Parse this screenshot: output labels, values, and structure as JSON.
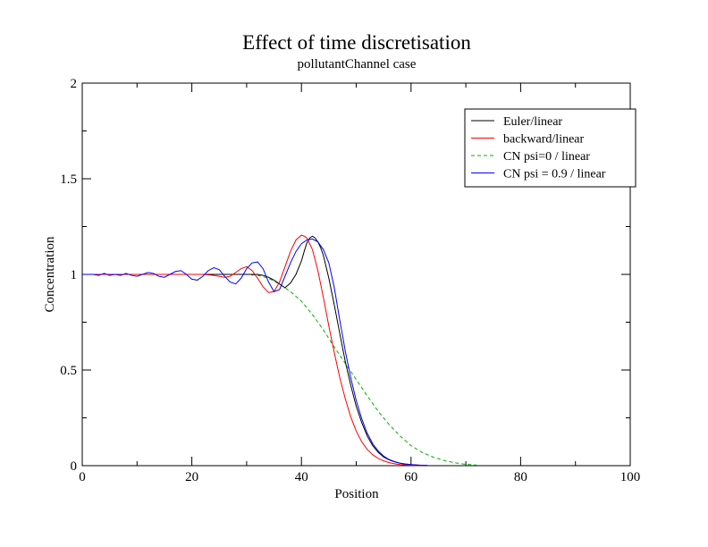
{
  "chart_data": {
    "type": "line",
    "title": "Effect of time discretisation",
    "subtitle": "pollutantChannel case",
    "xlabel": "Position",
    "ylabel": "Concentration",
    "xlim": [
      0,
      100
    ],
    "ylim": [
      0,
      2
    ],
    "x_ticks": [
      {
        "value": 0,
        "label": "0"
      },
      {
        "value": 20,
        "label": "20"
      },
      {
        "value": 40,
        "label": "40"
      },
      {
        "value": 60,
        "label": "60"
      },
      {
        "value": 80,
        "label": "80"
      },
      {
        "value": 100,
        "label": "100"
      }
    ],
    "y_ticks": [
      {
        "value": 0,
        "label": "0"
      },
      {
        "value": 0.5,
        "label": "0.5"
      },
      {
        "value": 1,
        "label": "1"
      },
      {
        "value": 1.5,
        "label": "1.5"
      },
      {
        "value": 2,
        "label": "2"
      }
    ],
    "grid": false,
    "legend_position": "top-right",
    "series": [
      {
        "name": "Euler/linear",
        "color": "#000000",
        "dash": "solid",
        "x": [
          0,
          2,
          4,
          6,
          8,
          10,
          12,
          14,
          16,
          18,
          20,
          22,
          24,
          26,
          28,
          30,
          32,
          33,
          34,
          35,
          36,
          37,
          38,
          39,
          40,
          40.5,
          41,
          41.5,
          42,
          42.5,
          43,
          43.5,
          44,
          45,
          46,
          47,
          48,
          49,
          50,
          51,
          52,
          53,
          54,
          55,
          56,
          57,
          58,
          59,
          60,
          61,
          62,
          63
        ],
        "y": [
          1,
          1,
          1,
          1,
          1,
          1,
          1,
          1,
          1,
          1,
          1,
          1,
          1,
          1,
          1,
          1,
          1,
          0.995,
          0.985,
          0.97,
          0.95,
          0.93,
          0.955,
          1.0,
          1.07,
          1.12,
          1.165,
          1.19,
          1.2,
          1.19,
          1.17,
          1.14,
          1.1,
          0.98,
          0.84,
          0.69,
          0.545,
          0.42,
          0.31,
          0.225,
          0.155,
          0.105,
          0.07,
          0.045,
          0.03,
          0.02,
          0.013,
          0.009,
          0.006,
          0.004,
          0.002,
          0.001
        ]
      },
      {
        "name": "backward/linear",
        "color": "#ff0000",
        "dash": "solid",
        "x": [
          0,
          2,
          4,
          6,
          8,
          10,
          12,
          14,
          16,
          18,
          20,
          22,
          24,
          25,
          26,
          27,
          28,
          29,
          30,
          31,
          32,
          33,
          34,
          35,
          36,
          37,
          38,
          39,
          40,
          40.5,
          41,
          42,
          43,
          44,
          45,
          46,
          47,
          48,
          49,
          50,
          51,
          52,
          53,
          54,
          55,
          56,
          57,
          58,
          59,
          60,
          61,
          62
        ],
        "y": [
          1,
          1,
          1,
          1,
          1,
          1,
          1,
          1,
          1,
          1,
          1,
          1,
          0.995,
          0.99,
          0.985,
          0.99,
          1.01,
          1.03,
          1.04,
          1.02,
          0.98,
          0.935,
          0.905,
          0.91,
          0.96,
          1.04,
          1.12,
          1.18,
          1.205,
          1.2,
          1.19,
          1.13,
          1.02,
          0.88,
          0.73,
          0.59,
          0.46,
          0.35,
          0.255,
          0.18,
          0.125,
          0.085,
          0.057,
          0.038,
          0.025,
          0.016,
          0.01,
          0.006,
          0.004,
          0.002,
          0.001,
          0.0005
        ]
      },
      {
        "name": "CN psi=0 / linear",
        "color": "#00b000",
        "dash": "dashed",
        "x": [
          0,
          5,
          10,
          15,
          20,
          25,
          30,
          32,
          34,
          36,
          38,
          40,
          42,
          44,
          46,
          48,
          50,
          52,
          54,
          56,
          58,
          60,
          62,
          64,
          66,
          68,
          70,
          72
        ],
        "y": [
          1,
          1,
          1,
          1,
          1,
          1,
          1,
          0.995,
          0.98,
          0.95,
          0.91,
          0.86,
          0.79,
          0.71,
          0.62,
          0.535,
          0.45,
          0.365,
          0.285,
          0.215,
          0.155,
          0.105,
          0.07,
          0.045,
          0.027,
          0.015,
          0.007,
          0.003
        ]
      },
      {
        "name": "CN psi = 0.9 / linear",
        "color": "#0000ff",
        "dash": "solid",
        "x": [
          0,
          1,
          2,
          3,
          4,
          5,
          6,
          7,
          8,
          9,
          10,
          11,
          12,
          13,
          14,
          15,
          16,
          17,
          18,
          19,
          20,
          21,
          22,
          23,
          24,
          25,
          26,
          27,
          28,
          29,
          30,
          31,
          32,
          33,
          34,
          35,
          36,
          37,
          38,
          39,
          40,
          41,
          42,
          43,
          44,
          45,
          46,
          47,
          48,
          49,
          50,
          51,
          52,
          53,
          54,
          55,
          56,
          57,
          58,
          59,
          60,
          61,
          62,
          63
        ],
        "y": [
          1,
          1,
          1,
          0.995,
          1.005,
          0.995,
          1,
          0.995,
          1.005,
          0.995,
          0.99,
          1,
          1.01,
          1.005,
          0.99,
          0.985,
          1,
          1.015,
          1.02,
          1.0,
          0.975,
          0.97,
          0.99,
          1.02,
          1.035,
          1.025,
          0.99,
          0.96,
          0.95,
          0.98,
          1.03,
          1.06,
          1.065,
          1.03,
          0.96,
          0.91,
          0.92,
          0.99,
          1.06,
          1.12,
          1.16,
          1.18,
          1.185,
          1.17,
          1.13,
          1.06,
          0.93,
          0.76,
          0.6,
          0.46,
          0.34,
          0.245,
          0.17,
          0.115,
          0.077,
          0.05,
          0.032,
          0.021,
          0.013,
          0.008,
          0.005,
          0.003,
          0.002,
          0.001
        ]
      }
    ]
  }
}
